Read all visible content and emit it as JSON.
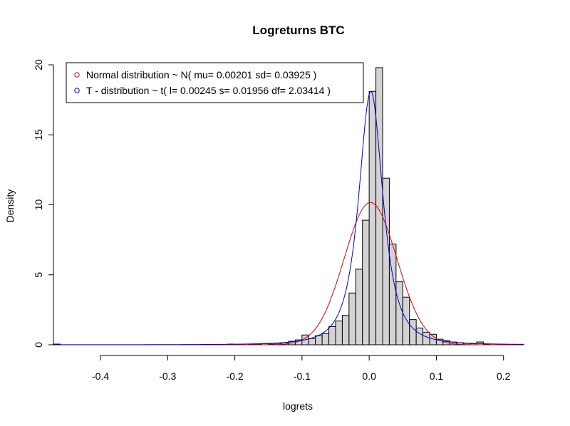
{
  "chart_data": {
    "type": "histogram",
    "title": "Logreturns BTC",
    "xlabel": "logrets",
    "ylabel": "Density",
    "xlim": [
      -0.47,
      0.23
    ],
    "ylim": [
      0,
      20
    ],
    "x_ticks": [
      -0.4,
      -0.3,
      -0.2,
      -0.1,
      0.0,
      0.1,
      0.2
    ],
    "x_tick_labels": [
      "-0.4",
      "-0.3",
      "-0.2",
      "-0.1",
      "0.0",
      "0.1",
      "0.2"
    ],
    "y_ticks": [
      0,
      5,
      10,
      15,
      20
    ],
    "y_tick_labels": [
      "0",
      "5",
      "10",
      "15",
      "20"
    ],
    "bin_width": 0.01,
    "bins": [
      {
        "x0": -0.47,
        "x1": -0.46,
        "density": 0.05
      },
      {
        "x0": -0.24,
        "x1": -0.23,
        "density": 0.03
      },
      {
        "x0": -0.21,
        "x1": -0.2,
        "density": 0.05
      },
      {
        "x0": -0.2,
        "x1": -0.19,
        "density": 0.03
      },
      {
        "x0": -0.18,
        "x1": -0.17,
        "density": 0.05
      },
      {
        "x0": -0.17,
        "x1": -0.16,
        "density": 0.03
      },
      {
        "x0": -0.16,
        "x1": -0.15,
        "density": 0.08
      },
      {
        "x0": -0.15,
        "x1": -0.14,
        "density": 0.05
      },
      {
        "x0": -0.14,
        "x1": -0.13,
        "density": 0.1
      },
      {
        "x0": -0.13,
        "x1": -0.12,
        "density": 0.15
      },
      {
        "x0": -0.12,
        "x1": -0.11,
        "density": 0.25
      },
      {
        "x0": -0.11,
        "x1": -0.1,
        "density": 0.35
      },
      {
        "x0": -0.1,
        "x1": -0.09,
        "density": 0.7
      },
      {
        "x0": -0.09,
        "x1": -0.08,
        "density": 0.45
      },
      {
        "x0": -0.08,
        "x1": -0.07,
        "density": 0.65
      },
      {
        "x0": -0.07,
        "x1": -0.06,
        "density": 0.8
      },
      {
        "x0": -0.06,
        "x1": -0.05,
        "density": 1.3
      },
      {
        "x0": -0.05,
        "x1": -0.04,
        "density": 1.7
      },
      {
        "x0": -0.04,
        "x1": -0.03,
        "density": 2.1
      },
      {
        "x0": -0.03,
        "x1": -0.02,
        "density": 3.7
      },
      {
        "x0": -0.02,
        "x1": -0.01,
        "density": 5.4
      },
      {
        "x0": -0.01,
        "x1": 0.0,
        "density": 8.9
      },
      {
        "x0": 0.0,
        "x1": 0.01,
        "density": 18.1
      },
      {
        "x0": 0.01,
        "x1": 0.02,
        "density": 19.8
      },
      {
        "x0": 0.02,
        "x1": 0.03,
        "density": 11.9
      },
      {
        "x0": 0.03,
        "x1": 0.04,
        "density": 7.2
      },
      {
        "x0": 0.04,
        "x1": 0.05,
        "density": 4.5
      },
      {
        "x0": 0.05,
        "x1": 0.06,
        "density": 3.4
      },
      {
        "x0": 0.06,
        "x1": 0.07,
        "density": 1.8
      },
      {
        "x0": 0.07,
        "x1": 0.08,
        "density": 1.2
      },
      {
        "x0": 0.08,
        "x1": 0.09,
        "density": 0.9
      },
      {
        "x0": 0.09,
        "x1": 0.1,
        "density": 0.75
      },
      {
        "x0": 0.1,
        "x1": 0.11,
        "density": 0.4
      },
      {
        "x0": 0.11,
        "x1": 0.12,
        "density": 0.3
      },
      {
        "x0": 0.12,
        "x1": 0.13,
        "density": 0.2
      },
      {
        "x0": 0.13,
        "x1": 0.14,
        "density": 0.15
      },
      {
        "x0": 0.14,
        "x1": 0.15,
        "density": 0.1
      },
      {
        "x0": 0.15,
        "x1": 0.16,
        "density": 0.08
      },
      {
        "x0": 0.16,
        "x1": 0.17,
        "density": 0.2
      },
      {
        "x0": 0.17,
        "x1": 0.18,
        "density": 0.05
      },
      {
        "x0": 0.19,
        "x1": 0.2,
        "density": 0.03
      },
      {
        "x0": 0.22,
        "x1": 0.23,
        "density": 0.03
      }
    ],
    "series": [
      {
        "name": "Normal distribution ~ N( mu= 0.00201 sd= 0.03925 )",
        "type": "normal",
        "mu": 0.00201,
        "sd": 0.03925,
        "color": "#dd0000"
      },
      {
        "name": "T - distribution ~ t( l= 0.00245 s= 0.01956 df= 2.03414 )",
        "type": "t",
        "l": 0.00245,
        "s": 0.01956,
        "df": 2.03414,
        "color": "#0000cc"
      }
    ],
    "bar_fill": "#d3d3d3",
    "bar_stroke": "#000000",
    "legend_position": "top-left"
  }
}
